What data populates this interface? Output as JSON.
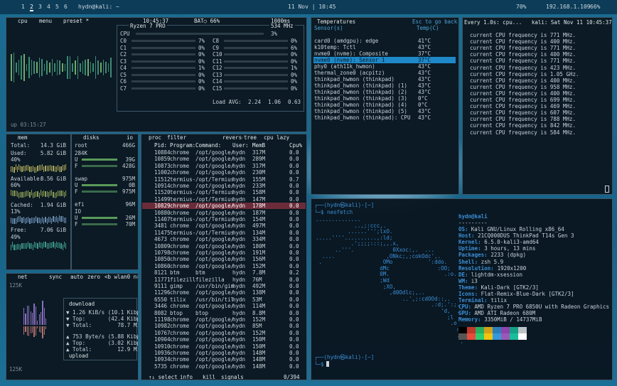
{
  "topbar": {
    "workspaces": [
      "1",
      "2",
      "3",
      "4",
      "5",
      "6"
    ],
    "window_title": "hydn@kali: ~",
    "datetime": "11 Nov | 10:45",
    "volume": "70%",
    "ip": "192.168.1.109",
    "battery": "66%"
  },
  "btop": {
    "cpu": {
      "header": [
        "cpu",
        "menu",
        "preset *"
      ],
      "clock": "10:45:37",
      "battery": "BAT○ 66%",
      "interval": "1000ms",
      "model": "Ryzen 7 PRO",
      "freq": "534 MHz",
      "total_label": "CPU",
      "total": "3%",
      "cores": [
        [
          "C0",
          "7%"
        ],
        [
          "C1",
          "0%"
        ],
        [
          "C2",
          "0%"
        ],
        [
          "C3",
          "0%"
        ],
        [
          "C4",
          "1%"
        ],
        [
          "C5",
          "0%"
        ],
        [
          "C6",
          "0%"
        ],
        [
          "C7",
          "0%"
        ],
        [
          "C8",
          "0%"
        ],
        [
          "C9",
          "6%"
        ],
        [
          "C10",
          "0%"
        ],
        [
          "C11",
          "0%"
        ],
        [
          "C12",
          "1%"
        ],
        [
          "C13",
          "0%"
        ],
        [
          "C14",
          "0%"
        ],
        [
          "C15",
          "0%"
        ]
      ],
      "load_label": "Load AVG:",
      "load": [
        "2.24",
        "1.06",
        "0.63"
      ],
      "uptime": "up 03:15:27"
    },
    "mem": {
      "title": "mem",
      "lines": [
        [
          "Total:",
          "14.3 GiB"
        ],
        [
          "Used:",
          "5.82 GiB"
        ],
        [
          "40%",
          ""
        ],
        [
          "Available:",
          "8.56 GiB"
        ],
        [
          "60%",
          ""
        ],
        [
          "Cached:",
          "1.94 GiB"
        ],
        [
          "13%",
          ""
        ],
        [
          "Free:",
          "7.06 GiB"
        ],
        [
          "49%",
          ""
        ]
      ]
    },
    "disks": {
      "title": "disks",
      "io": "io",
      "lines": [
        [
          "root",
          "466G"
        ],
        [
          "284K",
          ""
        ],
        [
          "U",
          "39G"
        ],
        [
          "F",
          "428G"
        ],
        [
          "swap",
          "975M"
        ],
        [
          "U",
          "0B"
        ],
        [
          "F",
          "975M"
        ],
        [
          "efi",
          "96M"
        ],
        [
          "IO",
          ""
        ],
        [
          "U",
          "26M"
        ],
        [
          "F",
          "70M"
        ]
      ]
    },
    "net": {
      "header": [
        "net",
        "sync",
        "auto",
        "zero",
        "<b wlan0 n>"
      ],
      "scale_top": "125K",
      "scale_bottom": "125K",
      "download": "download",
      "down_lines": [
        "▼ 1.26 KiB/s (10.1 Kibps)",
        "▼ Top:       (42.4 Kibps)",
        "▼ Total:        78.7 MiB"
      ],
      "up_lines": [
        "▲ 753 Byte/s (5.88 Kibps)",
        "▲ Top:       (3.02 Kibps)",
        "▲ Total:        12.9 MiB"
      ],
      "upload": "upload"
    },
    "proc": {
      "header": [
        "proc",
        "filter",
        "reverse",
        "tree",
        "cpu lazy"
      ],
      "columns": [
        "Pid:",
        "Program:",
        "Command:",
        "User:",
        "MemB",
        "Cpu%"
      ],
      "rows": [
        [
          "10884",
          "chrome",
          "/opt/google/",
          "hydn",
          "317M",
          "0.0"
        ],
        [
          "10859",
          "chrome",
          "/opt/google/",
          "hydn",
          "289M",
          "0.0"
        ],
        [
          "10873",
          "chrome",
          "/opt/google/",
          "hydn",
          "317M",
          "0.0"
        ],
        [
          "11002",
          "chrome",
          "/opt/google/",
          "hydn",
          "230M",
          "0.0"
        ],
        [
          "11512",
          "termius-",
          "/opt/Termius",
          "hydn",
          "155M",
          "0.7"
        ],
        [
          "10914",
          "chrome",
          "/opt/google/",
          "hydn",
          "233M",
          "0.0"
        ],
        [
          "11520",
          "termius-",
          "/opt/Termius",
          "hydn",
          "158M",
          "0.0"
        ],
        [
          "11499",
          "termius-",
          "/opt/Termius",
          "hydn",
          "147M",
          "0.0"
        ],
        [
          "10829",
          "chrome",
          "/opt/google/",
          "hydn",
          "178M",
          "0.0"
        ],
        [
          "10880",
          "chrome",
          "/opt/google/",
          "hydn",
          "187M",
          "0.0"
        ],
        [
          "11407",
          "termius-",
          "/opt/Termius",
          "hydn",
          "154M",
          "0.0"
        ],
        [
          "3481",
          "chrome",
          "/opt/google/",
          "hydn",
          "497M",
          "0.0"
        ],
        [
          "11475",
          "termius-",
          "/opt/Termius",
          "hydn",
          "134M",
          "0.0"
        ],
        [
          "4673",
          "chrome",
          "/opt/google/",
          "hydn",
          "334M",
          "0.0"
        ],
        [
          "10809",
          "chrome",
          "/opt/google/",
          "hydn",
          "180M",
          "0.0"
        ],
        [
          "10798",
          "chrome",
          "/opt/google/",
          "hydn",
          "191M",
          "0.0"
        ],
        [
          "10850",
          "chrome",
          "/opt/google/",
          "hydn",
          "156M",
          "0.0"
        ],
        [
          "10860",
          "chrome",
          "/opt/google/",
          "hydn",
          "152M",
          "0.0"
        ],
        [
          "8121",
          "btm",
          "btm",
          "hydn",
          "7.8M",
          "0.2"
        ],
        [
          "11771",
          "filezill",
          "filezilla",
          "hydn",
          "76M",
          "0.0"
        ],
        [
          "9111",
          "gimp",
          "/usr/bin/gim",
          "hydn",
          "492M",
          "0.0"
        ],
        [
          "11296",
          "chrome",
          "/opt/google/",
          "hydn",
          "138M",
          "0.0"
        ],
        [
          "6550",
          "tilix",
          "/usr/bin/til",
          "hydn",
          "53M",
          "0.0"
        ],
        [
          "3446",
          "chrome",
          "/opt/google/",
          "hydn",
          "114M",
          "0.0"
        ],
        [
          "8082",
          "btop",
          "btop",
          "hydn",
          "8.8M",
          "0.0"
        ],
        [
          "11198",
          "chrome",
          "/opt/google/",
          "hydn",
          "152M",
          "0.0"
        ],
        [
          "10982",
          "chrome",
          "/opt/google/",
          "hydn",
          "85M",
          "0.0"
        ],
        [
          "10767",
          "chrome",
          "/opt/google/",
          "hydn",
          "152M",
          "0.0"
        ],
        [
          "10904",
          "chrome",
          "/opt/google/",
          "hydn",
          "150M",
          "0.0"
        ],
        [
          "10910",
          "chrome",
          "/opt/google/",
          "hydn",
          "150M",
          "0.0"
        ],
        [
          "10936",
          "chrome",
          "/opt/google/",
          "hydn",
          "148M",
          "0.0"
        ],
        [
          "10934",
          "chrome",
          "/opt/google/",
          "hydn",
          "148M",
          "0.0"
        ],
        [
          "5735",
          "chrome",
          "/opt/google/",
          "hydn",
          "148M",
          "0.0"
        ]
      ],
      "footer": [
        "↑↓ select",
        "info",
        "kill",
        "signals"
      ],
      "count": "0/394"
    }
  },
  "temperatures": {
    "title": "Temperatures",
    "hint": "Esc to go back",
    "col_sensor": "Sensor(s)",
    "col_temp": "Temp(C)",
    "rows": [
      [
        "card0 (amdgpu): edge",
        "41°C"
      ],
      [
        "k10temp: Tctl",
        "43°C"
      ],
      [
        "nvme0 (nvme): Composite",
        "37°C"
      ],
      [
        "nvme0 (nvme): Sensor 1",
        "37°C"
      ],
      [
        "phy0 (ath11k_hwmon)",
        "43°C"
      ],
      [
        "thermal_zone0 (acpitz)",
        "43°C"
      ],
      [
        "thinkpad_hwmon (thinkpad)",
        "43°C"
      ],
      [
        "thinkpad_hwmon (thinkpad) (1)",
        "43°C"
      ],
      [
        "thinkpad_hwmon (thinkpad) (2)",
        "43°C"
      ],
      [
        "thinkpad_hwmon (thinkpad) (3)",
        "0°C"
      ],
      [
        "thinkpad_hwmon (thinkpad) (4)",
        "0°C"
      ],
      [
        "thinkpad_hwmon (thinkpad) (5)",
        "43°C"
      ],
      [
        "thinkpad_hwmon (thinkpad): CPU",
        "43°C"
      ]
    ]
  },
  "watch": {
    "header": "Every 1.0s: cpu...   kali: Sat Nov 11 10:45:37 2023",
    "lines": [
      "current CPU frequency is 771 MHz.",
      "current CPU frequency is 400 MHz.",
      "current CPU frequency is 771 MHz.",
      "current CPU frequency is 400 MHz.",
      "current CPU frequency is 771 MHz.",
      "current CPU frequency is 423 MHz.",
      "current CPU frequency is 1.05 GHz.",
      "current CPU frequency is 400 MHz.",
      "current CPU frequency is 958 MHz.",
      "current CPU frequency is 400 MHz.",
      "current CPU frequency is 699 MHz.",
      "current CPU frequency is 469 MHz.",
      "current CPU frequency is 607 MHz.",
      "current CPU frequency is 788 MHz.",
      "current CPU frequency is 842 MHz.",
      "current CPU frequency is 584 MHz."
    ]
  },
  "terminal": {
    "prompt": "┌──(hydn㉿kali)-[~]",
    "command": "└─$ neofetch",
    "logo": [
      "..............",
      "            ..,;:ccc,.",
      "          ......''';lxO.",
      ".....''''..........,:ld;",
      "           .';;;;:::;,,.x,",
      "      ..'''.            0Xxoc:,.  ...",
      "  ....                ,ONkc;,;cokOdc',.",
      " .                   OMo           ':ddo.",
      "                    dMc               :OO;",
      "                    0M.                 .:o.",
      "                    ;Wd",
      "                     ;XO,",
      "                       ,d0Odlc;,..",
      "                           ..',;:cdOOd::,.",
      "                                    .:d;.':;.",
      "                                       'd,  .'",
      "                                         ;l   ..",
      "                                          .o",
      "                                            c",
      "                                            .'",
      "                                             ."
    ],
    "user": "hydn@kali",
    "separator": "---------",
    "info": [
      [
        "OS:",
        "Kali GNU/Linux Rolling x86_64"
      ],
      [
        "Host:",
        "21CQ000DUS ThinkPad T14s Gen 3"
      ],
      [
        "Kernel:",
        "6.5.0-kali3-amd64"
      ],
      [
        "Uptime:",
        "3 hours, 13 mins"
      ],
      [
        "Packages:",
        "2233 (dpkg)"
      ],
      [
        "Shell:",
        "zsh 5.9"
      ],
      [
        "Resolution:",
        "1920x1200"
      ],
      [
        "DE:",
        "lightdm-xsession"
      ],
      [
        "WM:",
        "i3"
      ],
      [
        "Theme:",
        "Kali-Dark [GTK2/3]"
      ],
      [
        "Icons:",
        "Flat-Remix-Blue-Dark [GTK2/3]"
      ],
      [
        "Terminal:",
        "tilix"
      ],
      [
        "CPU:",
        "AMD Ryzen 7 PRO 6850U with Radeon Graphics (16"
      ],
      [
        "GPU:",
        "AMD ATI Radeon 680M"
      ],
      [
        "Memory:",
        "3350MiB / 14737MiB"
      ]
    ],
    "prompt2": "┌──(hydn㉿kali)-[~]",
    "command2": "└─$"
  }
}
